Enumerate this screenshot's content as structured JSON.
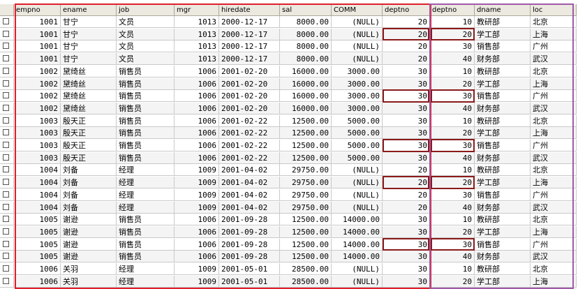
{
  "columns": [
    "empno",
    "ename",
    "job",
    "mgr",
    "hiredate",
    "sal",
    "COMM",
    "deptno",
    "deptno",
    "dname",
    "loc"
  ],
  "rows": [
    [
      "1001",
      "甘宁",
      "文员",
      "1013",
      "2000-12-17",
      "8000.00",
      "(NULL)",
      "20",
      "10",
      "教研部",
      "北京"
    ],
    [
      "1001",
      "甘宁",
      "文员",
      "1013",
      "2000-12-17",
      "8000.00",
      "(NULL)",
      "20",
      "20",
      "学工部",
      "上海"
    ],
    [
      "1001",
      "甘宁",
      "文员",
      "1013",
      "2000-12-17",
      "8000.00",
      "(NULL)",
      "20",
      "30",
      "销售部",
      "广州"
    ],
    [
      "1001",
      "甘宁",
      "文员",
      "1013",
      "2000-12-17",
      "8000.00",
      "(NULL)",
      "20",
      "40",
      "财务部",
      "武汉"
    ],
    [
      "1002",
      "黛绮丝",
      "销售员",
      "1006",
      "2001-02-20",
      "16000.00",
      "3000.00",
      "30",
      "10",
      "教研部",
      "北京"
    ],
    [
      "1002",
      "黛绮丝",
      "销售员",
      "1006",
      "2001-02-20",
      "16000.00",
      "3000.00",
      "30",
      "20",
      "学工部",
      "上海"
    ],
    [
      "1002",
      "黛绮丝",
      "销售员",
      "1006",
      "2001-02-20",
      "16000.00",
      "3000.00",
      "30",
      "30",
      "销售部",
      "广州"
    ],
    [
      "1002",
      "黛绮丝",
      "销售员",
      "1006",
      "2001-02-20",
      "16000.00",
      "3000.00",
      "30",
      "40",
      "财务部",
      "武汉"
    ],
    [
      "1003",
      "殷天正",
      "销售员",
      "1006",
      "2001-02-22",
      "12500.00",
      "5000.00",
      "30",
      "10",
      "教研部",
      "北京"
    ],
    [
      "1003",
      "殷天正",
      "销售员",
      "1006",
      "2001-02-22",
      "12500.00",
      "5000.00",
      "30",
      "20",
      "学工部",
      "上海"
    ],
    [
      "1003",
      "殷天正",
      "销售员",
      "1006",
      "2001-02-22",
      "12500.00",
      "5000.00",
      "30",
      "30",
      "销售部",
      "广州"
    ],
    [
      "1003",
      "殷天正",
      "销售员",
      "1006",
      "2001-02-22",
      "12500.00",
      "5000.00",
      "30",
      "40",
      "财务部",
      "武汉"
    ],
    [
      "1004",
      "刘备",
      "经理",
      "1009",
      "2001-04-02",
      "29750.00",
      "(NULL)",
      "20",
      "10",
      "教研部",
      "北京"
    ],
    [
      "1004",
      "刘备",
      "经理",
      "1009",
      "2001-04-02",
      "29750.00",
      "(NULL)",
      "20",
      "20",
      "学工部",
      "上海"
    ],
    [
      "1004",
      "刘备",
      "经理",
      "1009",
      "2001-04-02",
      "29750.00",
      "(NULL)",
      "20",
      "30",
      "销售部",
      "广州"
    ],
    [
      "1004",
      "刘备",
      "经理",
      "1009",
      "2001-04-02",
      "29750.00",
      "(NULL)",
      "20",
      "40",
      "财务部",
      "武汉"
    ],
    [
      "1005",
      "谢逊",
      "销售员",
      "1006",
      "2001-09-28",
      "12500.00",
      "14000.00",
      "30",
      "10",
      "教研部",
      "北京"
    ],
    [
      "1005",
      "谢逊",
      "销售员",
      "1006",
      "2001-09-28",
      "12500.00",
      "14000.00",
      "30",
      "20",
      "学工部",
      "上海"
    ],
    [
      "1005",
      "谢逊",
      "销售员",
      "1006",
      "2001-09-28",
      "12500.00",
      "14000.00",
      "30",
      "30",
      "销售部",
      "广州"
    ],
    [
      "1005",
      "谢逊",
      "销售员",
      "1006",
      "2001-09-28",
      "12500.00",
      "14000.00",
      "30",
      "40",
      "财务部",
      "武汉"
    ],
    [
      "1006",
      "关羽",
      "经理",
      "1009",
      "2001-05-01",
      "28500.00",
      "(NULL)",
      "30",
      "10",
      "教研部",
      "北京"
    ],
    [
      "1006",
      "关羽",
      "经理",
      "1009",
      "2001-05-01",
      "28500.00",
      "(NULL)",
      "30",
      "20",
      "学工部",
      "上海"
    ]
  ],
  "matched_row_indices": [
    1,
    6,
    10,
    13,
    18
  ],
  "colors": {
    "left_frame": "#e01e2b",
    "right_frame": "#a05aa8",
    "match_box": "#8b1a1a",
    "header_bg": "#ece9e0"
  }
}
